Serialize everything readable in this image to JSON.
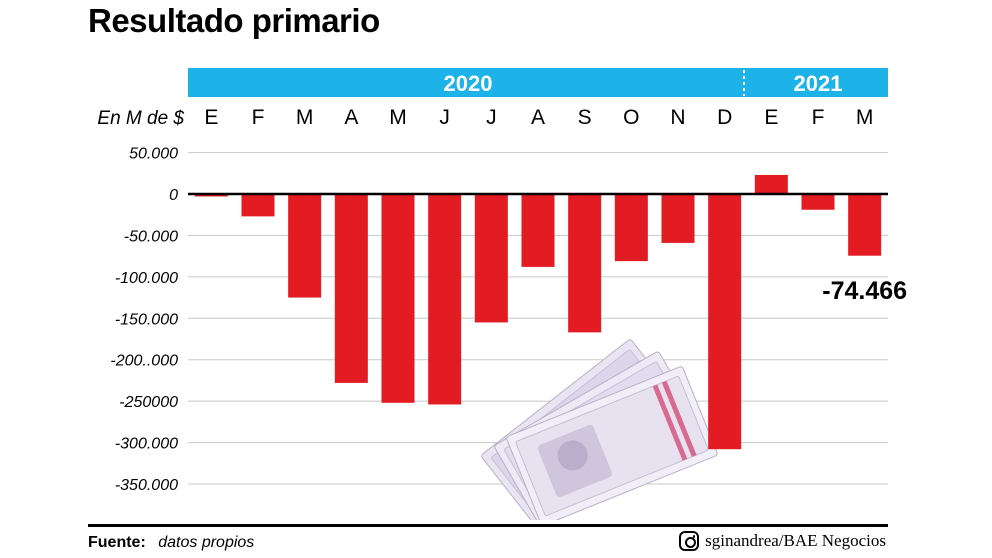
{
  "title": "Resultado primario",
  "unit_label": "En M de $",
  "callout": "-74.466",
  "colors": {
    "bar": "#e31b23",
    "year_band": "#1db3e8",
    "grid": "#c8c8c8",
    "text": "#000000"
  },
  "footer": {
    "source_label": "Fuente:",
    "source_text": "datos propios",
    "credit_icon": "instagram-icon",
    "credit": "sginandrea/BAE Negocios"
  },
  "chart_data": {
    "type": "bar",
    "title": "Resultado primario",
    "ylabel": "En M de $",
    "years": [
      {
        "label": "2020",
        "months": 12
      },
      {
        "label": "2021",
        "months": 3
      }
    ],
    "categories": [
      "E",
      "F",
      "M",
      "A",
      "M",
      "J",
      "J",
      "A",
      "S",
      "O",
      "N",
      "D",
      "E",
      "F",
      "M"
    ],
    "values": [
      -3000,
      -27000,
      -125000,
      -228000,
      -252000,
      -254000,
      -155000,
      -88000,
      -167000,
      -81000,
      -59000,
      -308000,
      23000,
      -19000,
      -74466
    ],
    "yticks": [
      50000,
      0,
      -50000,
      -100000,
      -150000,
      -200000,
      -250000,
      -300000,
      -350000
    ],
    "ytick_labels": [
      "50.000",
      "0",
      "-50.000",
      "-100.000",
      "-150.000",
      "-200..000",
      "-250000",
      "-300.000",
      "-350.000"
    ],
    "ylim": [
      -350000,
      50000
    ],
    "grid": true,
    "annotations": [
      {
        "category_index": 14,
        "text": "-74.466"
      }
    ]
  }
}
